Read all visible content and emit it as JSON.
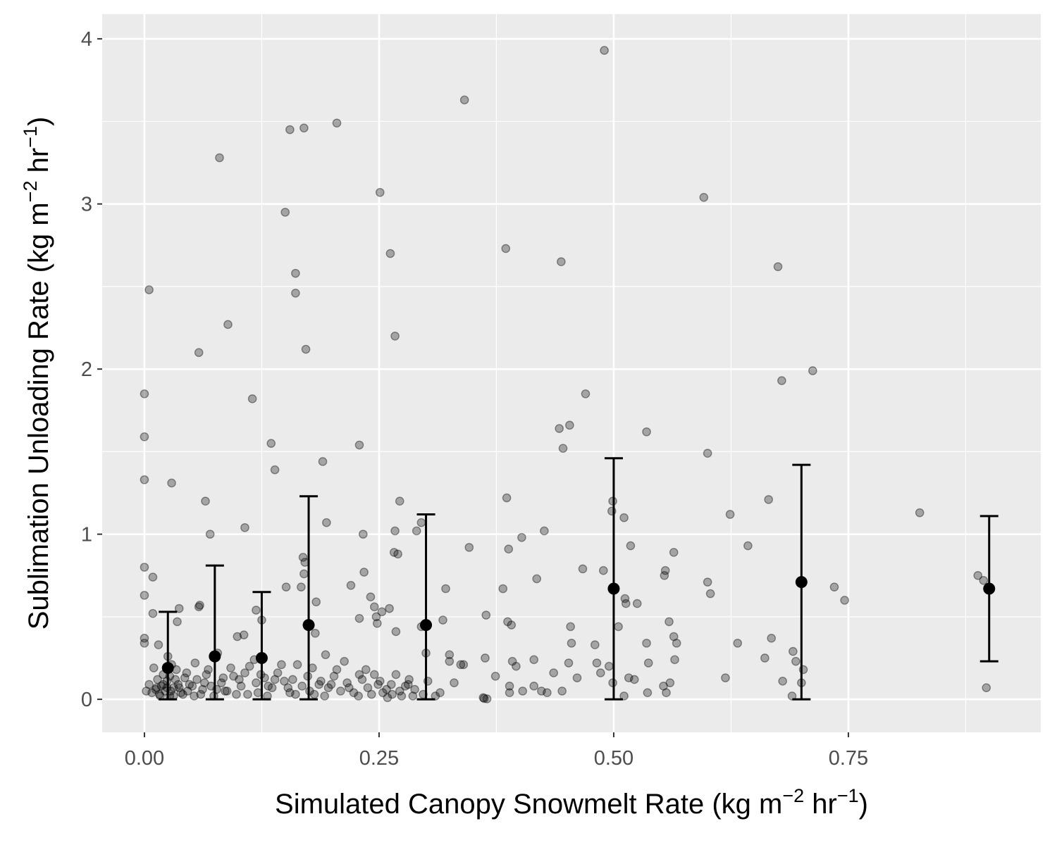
{
  "chart_data": {
    "type": "scatter",
    "title": "",
    "xlabel": {
      "text": "Simulated Canopy Snowmelt Rate (kg m",
      "sup1": "−2",
      "mid": " hr",
      "sup2": "−1",
      "end": ")"
    },
    "ylabel": {
      "text": "Sublimation Unloading Rate (kg m",
      "sup1": "−2",
      "mid": " hr",
      "sup2": "−1",
      "end": ")"
    },
    "xlim": [
      -0.045,
      0.955
    ],
    "ylim": [
      -0.2,
      4.15
    ],
    "x_ticks": [
      0.0,
      0.25,
      0.5,
      0.75
    ],
    "x_tick_labels": [
      "0.00",
      "0.25",
      "0.50",
      "0.75"
    ],
    "x_minor": [
      0.125,
      0.375,
      0.625,
      0.875
    ],
    "y_ticks": [
      0,
      1,
      2,
      3,
      4
    ],
    "y_tick_labels": [
      "0",
      "1",
      "2",
      "3",
      "4"
    ],
    "y_minor": [
      0.5,
      1.5,
      2.5,
      3.5
    ],
    "grid": true,
    "colors": {
      "panel": "#ebebeb",
      "grid": "#ffffff",
      "points": "#000000",
      "summary": "#000000"
    },
    "series": [
      {
        "kind": "observations",
        "points": [
          [
            0.49,
            3.93
          ],
          [
            0.341,
            3.63
          ],
          [
            0.205,
            3.49
          ],
          [
            0.17,
            3.46
          ],
          [
            0.155,
            3.45
          ],
          [
            0.08,
            3.28
          ],
          [
            0.251,
            3.07
          ],
          [
            0.596,
            3.04
          ],
          [
            0.15,
            2.95
          ],
          [
            0.385,
            2.73
          ],
          [
            0.262,
            2.7
          ],
          [
            0.444,
            2.65
          ],
          [
            0.675,
            2.62
          ],
          [
            0.161,
            2.58
          ],
          [
            0.005,
            2.48
          ],
          [
            0.161,
            2.46
          ],
          [
            0.089,
            2.27
          ],
          [
            0.267,
            2.2
          ],
          [
            0.172,
            2.12
          ],
          [
            0.058,
            2.1
          ],
          [
            0.712,
            1.99
          ],
          [
            0.679,
            1.93
          ],
          [
            0.0,
            1.85
          ],
          [
            0.47,
            1.85
          ],
          [
            0.115,
            1.82
          ],
          [
            0.453,
            1.66
          ],
          [
            0.442,
            1.64
          ],
          [
            0.535,
            1.62
          ],
          [
            0.0,
            1.59
          ],
          [
            0.229,
            1.54
          ],
          [
            0.135,
            1.55
          ],
          [
            0.446,
            1.52
          ],
          [
            0.6,
            1.49
          ],
          [
            0.19,
            1.44
          ],
          [
            0.139,
            1.39
          ],
          [
            0.0,
            1.33
          ],
          [
            0.029,
            1.31
          ],
          [
            0.272,
            1.2
          ],
          [
            0.065,
            1.2
          ],
          [
            0.499,
            1.2
          ],
          [
            0.386,
            1.22
          ],
          [
            0.665,
            1.21
          ],
          [
            0.498,
            1.14
          ],
          [
            0.826,
            1.13
          ],
          [
            0.624,
            1.12
          ],
          [
            0.511,
            1.1
          ],
          [
            0.295,
            1.07
          ],
          [
            0.194,
            1.07
          ],
          [
            0.107,
            1.04
          ],
          [
            0.29,
            1.02
          ],
          [
            0.267,
            1.02
          ],
          [
            0.426,
            1.02
          ],
          [
            0.233,
            1.0
          ],
          [
            0.07,
            1.0
          ],
          [
            0.402,
            0.98
          ],
          [
            0.518,
            0.93
          ],
          [
            0.643,
            0.93
          ],
          [
            0.346,
            0.92
          ],
          [
            0.388,
            0.91
          ],
          [
            0.564,
            0.89
          ],
          [
            0.266,
            0.89
          ],
          [
            0.27,
            0.88
          ],
          [
            0.169,
            0.86
          ],
          [
            0.171,
            0.83
          ],
          [
            0.0,
            0.8
          ],
          [
            0.467,
            0.79
          ],
          [
            0.555,
            0.78
          ],
          [
            0.489,
            0.78
          ],
          [
            0.234,
            0.77
          ],
          [
            0.17,
            0.76
          ],
          [
            0.888,
            0.75
          ],
          [
            0.554,
            0.75
          ],
          [
            0.009,
            0.74
          ],
          [
            0.418,
            0.73
          ],
          [
            0.894,
            0.72
          ],
          [
            0.6,
            0.71
          ],
          [
            0.22,
            0.69
          ],
          [
            0.167,
            0.68
          ],
          [
            0.151,
            0.68
          ],
          [
            0.735,
            0.68
          ],
          [
            0.382,
            0.67
          ],
          [
            0.321,
            0.67
          ],
          [
            0.603,
            0.64
          ],
          [
            0.0,
            0.63
          ],
          [
            0.241,
            0.62
          ],
          [
            0.512,
            0.61
          ],
          [
            0.746,
            0.6
          ],
          [
            0.183,
            0.59
          ],
          [
            0.513,
            0.58
          ],
          [
            0.525,
            0.58
          ],
          [
            0.059,
            0.57
          ],
          [
            0.245,
            0.56
          ],
          [
            0.058,
            0.56
          ],
          [
            0.261,
            0.55
          ],
          [
            0.037,
            0.55
          ],
          [
            0.119,
            0.54
          ],
          [
            0.253,
            0.53
          ],
          [
            0.009,
            0.52
          ],
          [
            0.364,
            0.51
          ],
          [
            0.247,
            0.5
          ],
          [
            0.229,
            0.49
          ],
          [
            0.125,
            0.48
          ],
          [
            0.318,
            0.48
          ],
          [
            0.387,
            0.47
          ],
          [
            0.559,
            0.47
          ],
          [
            0.035,
            0.47
          ],
          [
            0.248,
            0.46
          ],
          [
            0.391,
            0.45
          ],
          [
            0.295,
            0.44
          ],
          [
            0.505,
            0.44
          ],
          [
            0.454,
            0.44
          ],
          [
            0.268,
            0.41
          ],
          [
            0.182,
            0.4
          ],
          [
            0.106,
            0.39
          ],
          [
            0.564,
            0.38
          ],
          [
            0.48,
            0.33
          ],
          [
            0.535,
            0.34
          ],
          [
            0.632,
            0.34
          ],
          [
            0.567,
            0.34
          ],
          [
            0.668,
            0.37
          ],
          [
            0.0,
            0.37
          ],
          [
            0.099,
            0.38
          ],
          [
            0.691,
            0.29
          ],
          [
            0.3,
            0.28
          ],
          [
            0.325,
            0.27
          ],
          [
            0.0,
            0.34
          ],
          [
            0.015,
            0.33
          ],
          [
            0.455,
            0.34
          ],
          [
            0.661,
            0.25
          ],
          [
            0.565,
            0.24
          ],
          [
            0.363,
            0.25
          ],
          [
            0.392,
            0.23
          ],
          [
            0.694,
            0.23
          ],
          [
            0.325,
            0.23
          ],
          [
            0.482,
            0.22
          ],
          [
            0.452,
            0.22
          ],
          [
            0.337,
            0.21
          ],
          [
            0.415,
            0.24
          ],
          [
            0.537,
            0.22
          ],
          [
            0.396,
            0.2
          ],
          [
            0.495,
            0.2
          ],
          [
            0.702,
            0.18
          ],
          [
            0.486,
            0.16
          ],
          [
            0.436,
            0.16
          ],
          [
            0.374,
            0.14
          ],
          [
            0.516,
            0.13
          ],
          [
            0.522,
            0.12
          ],
          [
            0.619,
            0.13
          ],
          [
            0.461,
            0.13
          ],
          [
            0.68,
            0.11
          ],
          [
            0.499,
            0.1
          ],
          [
            0.56,
            0.1
          ],
          [
            0.7,
            0.1
          ],
          [
            0.553,
            0.08
          ],
          [
            0.389,
            0.08
          ],
          [
            0.415,
            0.08
          ],
          [
            0.423,
            0.05
          ],
          [
            0.429,
            0.04
          ],
          [
            0.445,
            0.05
          ],
          [
            0.403,
            0.05
          ],
          [
            0.389,
            0.04
          ],
          [
            0.511,
            0.02
          ],
          [
            0.536,
            0.04
          ],
          [
            0.556,
            0.04
          ],
          [
            0.69,
            0.02
          ],
          [
            0.897,
            0.07
          ],
          [
            0.31,
            0.02
          ],
          [
            0.362,
            0.005
          ],
          [
            0.365,
            0.003
          ],
          [
            0.361,
            0.01
          ],
          [
            0.33,
            0.1
          ],
          [
            0.34,
            0.21
          ],
          [
            0.282,
            0.12
          ],
          [
            0.278,
            0.08
          ],
          [
            0.272,
            0.05
          ],
          [
            0.264,
            0.03
          ],
          [
            0.259,
            0.01
          ],
          [
            0.286,
            0.02
          ],
          [
            0.242,
            0.03
          ],
          [
            0.249,
            0.09
          ],
          [
            0.229,
            0.15
          ],
          [
            0.213,
            0.23
          ],
          [
            0.205,
            0.18
          ],
          [
            0.193,
            0.27
          ],
          [
            0.186,
            0.09
          ],
          [
            0.176,
            0.05
          ],
          [
            0.158,
            0.12
          ],
          [
            0.146,
            0.21
          ],
          [
            0.132,
            0.08
          ],
          [
            0.124,
            0.15
          ],
          [
            0.117,
            0.24
          ],
          [
            0.11,
            0.03
          ],
          [
            0.101,
            0.12
          ],
          [
            0.092,
            0.19
          ],
          [
            0.086,
            0.05
          ],
          [
            0.078,
            0.28
          ],
          [
            0.071,
            0.08
          ],
          [
            0.066,
            0.15
          ],
          [
            0.06,
            0.03
          ],
          [
            0.054,
            0.22
          ],
          [
            0.048,
            0.09
          ],
          [
            0.043,
            0.13
          ],
          [
            0.039,
            0.04
          ],
          [
            0.034,
            0.18
          ],
          [
            0.031,
            0.07
          ],
          [
            0.027,
            0.02
          ],
          [
            0.024,
            0.11
          ],
          [
            0.022,
            0.05
          ],
          [
            0.02,
            0.15
          ],
          [
            0.018,
            0.08
          ],
          [
            0.016,
            0.03
          ],
          [
            0.014,
            0.12
          ],
          [
            0.012,
            0.06
          ],
          [
            0.01,
            0.19
          ],
          [
            0.008,
            0.04
          ],
          [
            0.005,
            0.09
          ],
          [
            0.002,
            0.05
          ],
          [
            0.025,
            0.26
          ],
          [
            0.029,
            0.21
          ],
          [
            0.033,
            0.12
          ],
          [
            0.037,
            0.07
          ],
          [
            0.041,
            0.03
          ],
          [
            0.045,
            0.16
          ],
          [
            0.051,
            0.08
          ],
          [
            0.056,
            0.12
          ],
          [
            0.062,
            0.06
          ],
          [
            0.068,
            0.18
          ],
          [
            0.074,
            0.02
          ],
          [
            0.082,
            0.1
          ],
          [
            0.088,
            0.05
          ],
          [
            0.095,
            0.14
          ],
          [
            0.103,
            0.08
          ],
          [
            0.112,
            0.2
          ],
          [
            0.121,
            0.04
          ],
          [
            0.128,
            0.13
          ],
          [
            0.136,
            0.07
          ],
          [
            0.142,
            0.16
          ],
          [
            0.149,
            0.11
          ],
          [
            0.155,
            0.04
          ],
          [
            0.163,
            0.21
          ],
          [
            0.168,
            0.08
          ],
          [
            0.174,
            0.14
          ],
          [
            0.181,
            0.03
          ],
          [
            0.188,
            0.11
          ],
          [
            0.196,
            0.07
          ],
          [
            0.202,
            0.14
          ],
          [
            0.209,
            0.05
          ],
          [
            0.216,
            0.1
          ],
          [
            0.223,
            0.04
          ],
          [
            0.232,
            0.12
          ],
          [
            0.238,
            0.07
          ],
          [
            0.245,
            0.15
          ],
          [
            0.254,
            0.04
          ],
          [
            0.263,
            0.09
          ],
          [
            0.274,
            0.02
          ],
          [
            0.288,
            0.06
          ],
          [
            0.297,
            0.03
          ],
          [
            0.315,
            0.04
          ],
          [
            0.024,
            0.07
          ],
          [
            0.027,
            0.14
          ],
          [
            0.02,
            0.09
          ],
          [
            0.017,
            0.02
          ],
          [
            0.013,
            0.07
          ],
          [
            0.028,
            0.05
          ],
          [
            0.031,
            0.02
          ],
          [
            0.036,
            0.09
          ],
          [
            0.046,
            0.05
          ],
          [
            0.053,
            0.02
          ],
          [
            0.064,
            0.1
          ],
          [
            0.077,
            0.06
          ],
          [
            0.084,
            0.13
          ],
          [
            0.098,
            0.03
          ],
          [
            0.107,
            0.16
          ],
          [
            0.119,
            0.1
          ],
          [
            0.131,
            0.02
          ],
          [
            0.139,
            0.12
          ],
          [
            0.153,
            0.07
          ],
          [
            0.161,
            0.03
          ],
          [
            0.179,
            0.19
          ],
          [
            0.192,
            0.02
          ],
          [
            0.199,
            0.09
          ],
          [
            0.218,
            0.07
          ],
          [
            0.228,
            0.02
          ],
          [
            0.236,
            0.18
          ],
          [
            0.251,
            0.11
          ],
          [
            0.258,
            0.06
          ],
          [
            0.268,
            0.15
          ],
          [
            0.281,
            0.09
          ],
          [
            0.302,
            0.11
          ]
        ]
      },
      {
        "kind": "binned-mean",
        "points": [
          {
            "x": 0.025,
            "mean": 0.19,
            "lower": 0.0,
            "upper": 0.53
          },
          {
            "x": 0.075,
            "mean": 0.26,
            "lower": 0.0,
            "upper": 0.81
          },
          {
            "x": 0.125,
            "mean": 0.25,
            "lower": 0.0,
            "upper": 0.65
          },
          {
            "x": 0.175,
            "mean": 0.45,
            "lower": 0.0,
            "upper": 1.23
          },
          {
            "x": 0.3,
            "mean": 0.45,
            "lower": 0.0,
            "upper": 1.12
          },
          {
            "x": 0.5,
            "mean": 0.67,
            "lower": 0.0,
            "upper": 1.46
          },
          {
            "x": 0.7,
            "mean": 0.71,
            "lower": 0.0,
            "upper": 1.42
          },
          {
            "x": 0.9,
            "mean": 0.67,
            "lower": 0.23,
            "upper": 1.11
          }
        ]
      }
    ]
  }
}
